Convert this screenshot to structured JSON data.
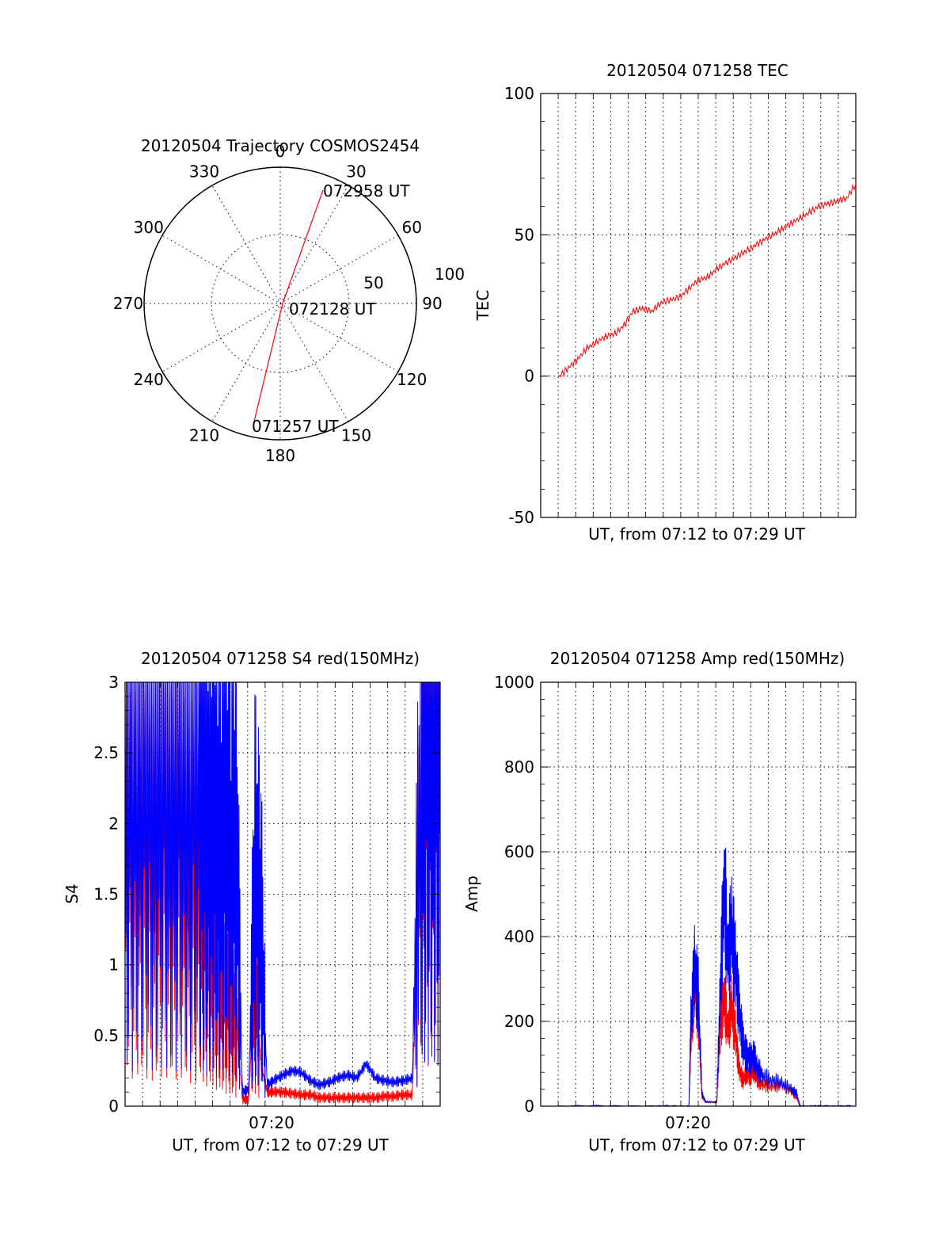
{
  "colors": {
    "red": "#ff0000",
    "blue": "#0000ff",
    "axis": "#000000"
  },
  "chart_data": [
    {
      "id": "trajectory",
      "type": "polar",
      "title": "20120504 Trajectory COSMOS2454",
      "angle_labels": [
        "0",
        "30",
        "60",
        "90",
        "120",
        "150",
        "180",
        "210",
        "240",
        "270",
        "300",
        "330"
      ],
      "radial_labels": [
        "50",
        "100"
      ],
      "radial_range": [
        0,
        100
      ],
      "grid": true,
      "annotations": [
        "072958 UT",
        "072128 UT",
        "071257 UT"
      ],
      "series": [
        {
          "color": "red",
          "points": [
            {
              "az": 15,
              "el": 18
            },
            {
              "az": 195,
              "el": 10
            },
            {
              "az": 195,
              "el": 18
            },
            {
              "az": 200,
              "el": 20
            },
            {
              "az": 205,
              "el": 22
            }
          ]
        }
      ],
      "trajectory_points": [
        {
          "time": "071257 UT",
          "az": 202,
          "r": 93
        },
        {
          "time": "072128 UT",
          "az": 20,
          "r": 3
        },
        {
          "time": "072958 UT",
          "az": 19,
          "r": 82
        }
      ]
    },
    {
      "id": "tec",
      "type": "line",
      "title": "20120504 071258 TEC",
      "xlabel": "UT, from 07:12 to 07:29 UT",
      "ylabel": "TEC",
      "ylim": [
        -50,
        100
      ],
      "yticks": [
        "100",
        "50",
        "0",
        "-50"
      ],
      "xlim": [
        7.2,
        7.4833
      ],
      "grid": true,
      "series": [
        {
          "color": "red",
          "x": [
            7.2167,
            7.225,
            7.2333,
            7.2417,
            7.25,
            7.2583,
            7.2667,
            7.275,
            7.2833,
            7.2917,
            7.3,
            7.3083,
            7.3167,
            7.325,
            7.3333,
            7.3417,
            7.35,
            7.3583,
            7.3667,
            7.375,
            7.3833,
            7.3917,
            7.4,
            7.4083,
            7.4167,
            7.425,
            7.4333,
            7.4417,
            7.45,
            7.4583,
            7.4667,
            7.475,
            7.4833
          ],
          "y": [
            0,
            3,
            6,
            10,
            12,
            14,
            15,
            18,
            23,
            24,
            23,
            26,
            27,
            28,
            31,
            34,
            35,
            38,
            40,
            42,
            44,
            46,
            48,
            50,
            52,
            54,
            56,
            58,
            60,
            61,
            62,
            63,
            68
          ]
        }
      ]
    },
    {
      "id": "s4",
      "type": "line",
      "title": "20120504 071258 S4 red(150MHz)",
      "xlabel": "UT, from 07:12 to 07:29 UT",
      "ylabel": "S4",
      "ylim": [
        0,
        3
      ],
      "yticks": [
        "3",
        "2.5",
        "2",
        "1.5",
        "1",
        "0.5",
        "0"
      ],
      "xtick_label": "07:20",
      "xlim": [
        7.2,
        7.4833
      ],
      "grid": true,
      "series": [
        {
          "name": "",
          "color": "red",
          "x": [
            7.2,
            7.2083,
            7.2167,
            7.225,
            7.2333,
            7.2417,
            7.25,
            7.2583,
            7.2667,
            7.2722,
            7.2778,
            7.2833,
            7.2889,
            7.2944,
            7.3,
            7.3056,
            7.3111,
            7.3167,
            7.3222,
            7.3278,
            7.3333,
            7.3417,
            7.35,
            7.3583,
            7.3667,
            7.375,
            7.3833,
            7.3917,
            7.4,
            7.4083,
            7.4167,
            7.425,
            7.4333,
            7.4417,
            7.45,
            7.4583,
            7.4667,
            7.4722,
            7.4778,
            7.4833
          ],
          "y": [
            2.4,
            1.8,
            2.1,
            1.6,
            2.0,
            1.7,
            1.9,
            1.5,
            1.7,
            1.4,
            1.3,
            1.1,
            0.9,
            0.8,
            0.6,
            0.05,
            0.05,
            0.9,
            0.3,
            0.1,
            0.1,
            0.1,
            0.09,
            0.08,
            0.08,
            0.06,
            0.06,
            0.06,
            0.06,
            0.06,
            0.06,
            0.06,
            0.07,
            0.07,
            0.08,
            0.08,
            2.5,
            2.8,
            2.6,
            3.0
          ]
        },
        {
          "name": "",
          "color": "blue",
          "x": [
            7.2,
            7.2083,
            7.2167,
            7.225,
            7.2333,
            7.2417,
            7.25,
            7.2583,
            7.2667,
            7.2722,
            7.2778,
            7.2833,
            7.2889,
            7.2944,
            7.3,
            7.3056,
            7.3111,
            7.3167,
            7.3222,
            7.3278,
            7.3333,
            7.3417,
            7.35,
            7.3583,
            7.3667,
            7.375,
            7.3833,
            7.3917,
            7.4,
            7.4083,
            7.4167,
            7.425,
            7.4333,
            7.4417,
            7.45,
            7.4583,
            7.4667,
            7.4722,
            7.4778,
            7.4833
          ],
          "y": [
            2.6,
            2.4,
            2.8,
            2.3,
            2.7,
            2.2,
            2.5,
            2.3,
            2.6,
            2.0,
            2.2,
            1.9,
            2.1,
            1.8,
            1.9,
            0.1,
            0.12,
            1.6,
            1.3,
            0.15,
            0.18,
            0.22,
            0.25,
            0.24,
            0.18,
            0.15,
            0.17,
            0.2,
            0.22,
            0.2,
            0.3,
            0.2,
            0.18,
            0.17,
            0.18,
            0.2,
            2.6,
            2.9,
            2.7,
            3.0
          ]
        }
      ]
    },
    {
      "id": "amp",
      "type": "line",
      "title": "20120504 071258 Amp red(150MHz)",
      "xlabel": "UT, from 07:12 to 07:29 UT",
      "ylabel": "Amp",
      "ylim": [
        0,
        1000
      ],
      "yticks": [
        "1000",
        "800",
        "600",
        "400",
        "200",
        "0"
      ],
      "xtick_label": "07:20",
      "xlim": [
        7.2,
        7.4833
      ],
      "grid": true,
      "series": [
        {
          "name": "",
          "color": "red",
          "x": [
            7.2167,
            7.3,
            7.3333,
            7.335,
            7.3383,
            7.3417,
            7.345,
            7.3483,
            7.35,
            7.3583,
            7.3617,
            7.365,
            7.3683,
            7.3717,
            7.375,
            7.3783,
            7.3817,
            7.385,
            7.3883,
            7.3917,
            7.395,
            7.4,
            7.4083,
            7.4167,
            7.425,
            7.43,
            7.4333,
            7.45,
            7.4833
          ],
          "y": [
            0,
            0,
            0,
            150,
            300,
            220,
            20,
            10,
            10,
            8,
            200,
            260,
            180,
            240,
            170,
            90,
            60,
            80,
            70,
            90,
            60,
            50,
            45,
            50,
            35,
            20,
            0,
            0,
            0
          ]
        },
        {
          "name": "",
          "color": "blue",
          "x": [
            7.2167,
            7.3,
            7.3333,
            7.335,
            7.3383,
            7.3417,
            7.345,
            7.3483,
            7.35,
            7.3583,
            7.3617,
            7.365,
            7.3683,
            7.3717,
            7.375,
            7.3783,
            7.3817,
            7.385,
            7.3883,
            7.3917,
            7.395,
            7.4,
            7.4083,
            7.4167,
            7.425,
            7.43,
            7.4333,
            7.45,
            7.4833
          ],
          "y": [
            0,
            0,
            0,
            200,
            320,
            260,
            30,
            10,
            10,
            10,
            300,
            520,
            350,
            420,
            330,
            230,
            150,
            120,
            110,
            120,
            90,
            70,
            60,
            55,
            40,
            30,
            0,
            0,
            0
          ]
        }
      ]
    }
  ]
}
